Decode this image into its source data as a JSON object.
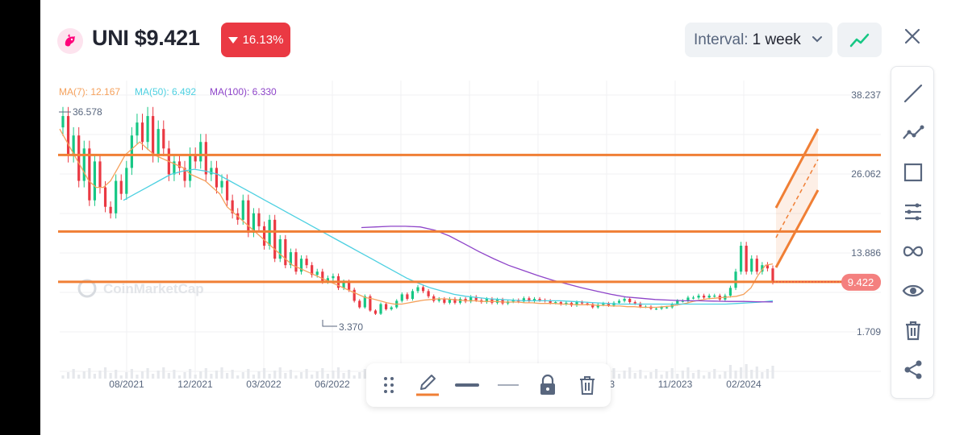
{
  "header": {
    "coin_title": "UNI $9.421",
    "change": "16.13%",
    "change_direction": "down",
    "interval_label": "Interval:",
    "interval_value": "1 week"
  },
  "colors": {
    "up": "#16c784",
    "down": "#ea3943",
    "ma7": "#f5a15c",
    "ma50": "#4dd0e1",
    "ma100": "#8e44c9",
    "drawing": "#f07f35",
    "brand": "#ff007a"
  },
  "chart_data": {
    "type": "candlestick",
    "legend": [
      {
        "name": "MA(7)",
        "value": "12.167",
        "color": "#f5a15c"
      },
      {
        "name": "MA(50)",
        "value": "6.492",
        "color": "#4dd0e1"
      },
      {
        "name": "MA(100)",
        "value": "6.330",
        "color": "#8e44c9"
      }
    ],
    "y_ticks": [
      "38.237",
      "26.062",
      "13.886",
      "1.709"
    ],
    "x_ticks": [
      "08/2021",
      "12/2021",
      "03/2022",
      "06/2022",
      "11/2023",
      "02/2024"
    ],
    "x_tick_partial": "023",
    "current_price_label": "9.422",
    "annotations": {
      "high": "36.578",
      "low": "3.370",
      "watermark": "CoinMarketCap"
    },
    "horizontal_lines": [
      29.0,
      17.2,
      9.43
    ],
    "ylim": [
      1.709,
      38.237
    ],
    "y_scale": "linear",
    "candle_closes": [
      35,
      29,
      32,
      25,
      30,
      22,
      28,
      24,
      21,
      20,
      25,
      23,
      27,
      32,
      34,
      31,
      35,
      29,
      33,
      30,
      26,
      28,
      27,
      25,
      29,
      28,
      31,
      26,
      27,
      24,
      25,
      22,
      20,
      19,
      22,
      17,
      20,
      18,
      15,
      19,
      13,
      16,
      12,
      14,
      11,
      13,
      12,
      10.5,
      11,
      9.5,
      10,
      10.3,
      8.5,
      9.4,
      8.2,
      6.5,
      5.5,
      7.2,
      5,
      4.5,
      6,
      5.2,
      5.5,
      6.5,
      7.5,
      6.8,
      8,
      8.6,
      8,
      7.2,
      6.5,
      6.8,
      6.2,
      6.8,
      6.2,
      6.8,
      6.4,
      7.1,
      6.6,
      6.3,
      6.8,
      6.2,
      6.7,
      6.1,
      6.4,
      6.6,
      6.4,
      6.9,
      6.5,
      6.8,
      6.6,
      6.5,
      6.2,
      6.3,
      6,
      6.2,
      5.8,
      6.3,
      6.1,
      6,
      5.5,
      5.9,
      6.1,
      5.8,
      6.2,
      6.5,
      6.8,
      6.3,
      6.1,
      5.6,
      5.6,
      5.3,
      5.3,
      5.5,
      5.5,
      6,
      6.5,
      6.5,
      7,
      7,
      7.3,
      7,
      7.3,
      7.3,
      6.7,
      7.3,
      8.5,
      11,
      15,
      11,
      13,
      11,
      12,
      11.5,
      9.4
    ],
    "ma7": [
      33,
      31,
      29,
      27,
      25,
      24,
      24,
      25,
      27,
      29,
      30,
      31,
      30,
      29,
      28.5,
      28,
      27.5,
      27,
      26,
      25.5,
      25,
      24,
      23,
      21,
      20,
      19,
      18,
      17,
      16,
      15,
      14,
      13,
      12,
      11.5,
      11,
      10.5,
      10,
      9.5,
      9,
      8.5,
      8,
      7.5,
      7,
      6.8,
      6.5,
      6.2,
      6,
      6,
      6.2,
      6.4,
      6.6,
      6.7,
      6.8,
      6.8,
      6.7,
      6.6,
      6.5,
      6.5,
      6.4,
      6.4,
      6.4,
      6.3,
      6.3,
      6.3,
      6.2,
      6.2,
      6.1,
      6.1,
      6.1,
      6,
      6,
      5.9,
      5.9,
      5.9,
      5.8,
      5.8,
      5.7,
      5.7,
      5.6,
      5.6,
      5.5,
      5.5,
      5.5,
      5.6,
      5.7,
      5.9,
      6.1,
      6.4,
      6.6,
      6.8,
      6.9,
      7,
      7.1,
      7.2,
      7.5,
      8.5,
      10.5,
      12,
      12.2
    ],
    "ma50": [
      22,
      23,
      24,
      25,
      26,
      26.5,
      26.8,
      26.5,
      26,
      25,
      24,
      23,
      22,
      21,
      20,
      19,
      18,
      17,
      16,
      15,
      14,
      13,
      12,
      11,
      10,
      9.2,
      8.5,
      8,
      7.5,
      7.2,
      7,
      6.8,
      6.7,
      6.6,
      6.5,
      6.5,
      6.5,
      6.5,
      6.4,
      6.3,
      6.2,
      6.1,
      6,
      6,
      6,
      6,
      6,
      6,
      6,
      6,
      6,
      6,
      6.1,
      6.2,
      6.3,
      6.5
    ],
    "ma100": [
      17.8,
      17.9,
      18,
      18,
      17.9,
      17.4,
      16.5,
      15.3,
      14.1,
      13,
      12,
      11.2,
      10.4,
      9.7,
      9.1,
      8.5,
      8,
      7.5,
      7.1,
      6.9,
      6.7,
      6.6,
      6.5,
      6.5,
      6.45,
      6.4,
      6.4,
      6.35,
      6.33
    ]
  }
}
